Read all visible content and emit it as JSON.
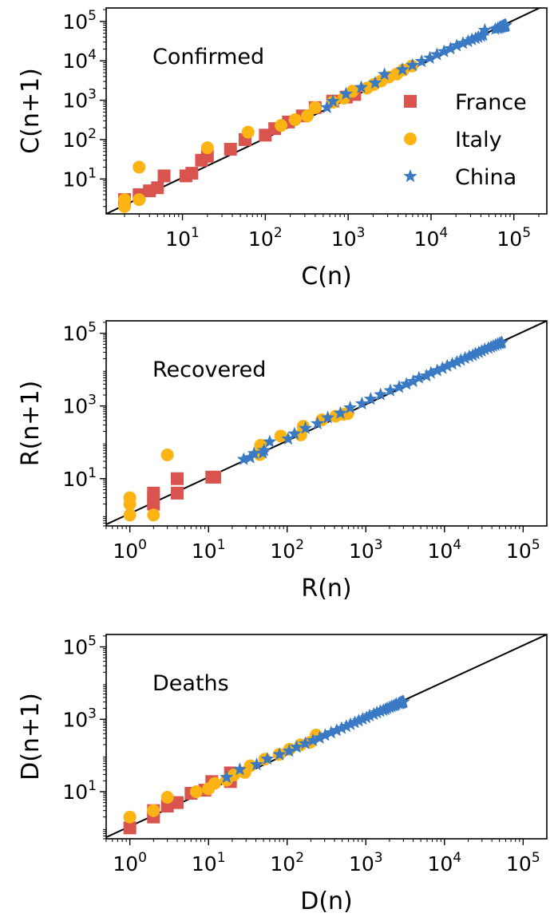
{
  "colors": {
    "France": "#d9534f",
    "Italy": "#fbb414",
    "China": "#3a79c3",
    "fit": "#000000"
  },
  "chart_data": [
    {
      "type": "scatter",
      "panel_label": "Confirmed",
      "xlabel": "C(n)",
      "ylabel": "C(n+1)",
      "x_scale": "log",
      "y_scale": "log",
      "xlim": [
        1.2,
        250000
      ],
      "ylim": [
        1.3,
        220000
      ],
      "x_ticks": [
        {
          "base": "10",
          "exp": "1",
          "value": 10
        },
        {
          "base": "10",
          "exp": "2",
          "value": 100
        },
        {
          "base": "10",
          "exp": "3",
          "value": 1000
        },
        {
          "base": "10",
          "exp": "4",
          "value": 10000
        },
        {
          "base": "10",
          "exp": "5",
          "value": 100000
        }
      ],
      "y_ticks": [
        {
          "base": "10",
          "exp": "1",
          "value": 10
        },
        {
          "base": "10",
          "exp": "2",
          "value": 100
        },
        {
          "base": "10",
          "exp": "3",
          "value": 1000
        },
        {
          "base": "10",
          "exp": "4",
          "value": 10000
        },
        {
          "base": "10",
          "exp": "5",
          "value": 100000
        }
      ],
      "grid": false,
      "fit_line": [
        [
          1.2,
          1.3
        ],
        [
          250000,
          270000
        ]
      ],
      "legend": {
        "placement": "right",
        "entries": [
          "France",
          "Italy",
          "China"
        ]
      },
      "series": [
        {
          "name": "France",
          "marker": "square",
          "points": [
            [
              2,
              3
            ],
            [
              3,
              4
            ],
            [
              4,
              5
            ],
            [
              5,
              6
            ],
            [
              6,
              12
            ],
            [
              11,
              12
            ],
            [
              13,
              14
            ],
            [
              17,
              30
            ],
            [
              20,
              38
            ],
            [
              38,
              57
            ],
            [
              57,
              100
            ],
            [
              100,
              130
            ],
            [
              130,
              190
            ],
            [
              190,
              280
            ],
            [
              280,
              400
            ],
            [
              400,
              650
            ],
            [
              650,
              950
            ],
            [
              950,
              1200
            ],
            [
              1200,
              1400
            ]
          ]
        },
        {
          "name": "Italy",
          "marker": "circle",
          "points": [
            [
              2,
              2
            ],
            [
              2,
              3
            ],
            [
              3,
              3
            ],
            [
              3,
              20
            ],
            [
              20,
              62
            ],
            [
              62,
              155
            ],
            [
              155,
              229
            ],
            [
              229,
              322
            ],
            [
              322,
              400
            ],
            [
              400,
              650
            ],
            [
              650,
              888
            ],
            [
              888,
              1128
            ],
            [
              1128,
              1694
            ],
            [
              1694,
              2036
            ],
            [
              2036,
              2502
            ],
            [
              2502,
              3089
            ],
            [
              3089,
              3858
            ],
            [
              3858,
              4636
            ],
            [
              4636,
              5883
            ],
            [
              5883,
              7375
            ]
          ]
        },
        {
          "name": "China",
          "marker": "star",
          "points": [
            [
              555,
              653
            ],
            [
              653,
              941
            ],
            [
              941,
              1438
            ],
            [
              1438,
              2118
            ],
            [
              2118,
              2744
            ],
            [
              2744,
              4515
            ],
            [
              4515,
              5974
            ],
            [
              5974,
              7711
            ],
            [
              7711,
              9692
            ],
            [
              9692,
              11791
            ],
            [
              11791,
              14380
            ],
            [
              14380,
              17205
            ],
            [
              17205,
              20438
            ],
            [
              20438,
              24324
            ],
            [
              24324,
              28018
            ],
            [
              28018,
              31161
            ],
            [
              31161,
              34546
            ],
            [
              34546,
              37198
            ],
            [
              37198,
              40171
            ],
            [
              40171,
              42638
            ],
            [
              42638,
              44653
            ],
            [
              44653,
              59804
            ],
            [
              59804,
              63851
            ],
            [
              63851,
              66492
            ],
            [
              66492,
              68500
            ],
            [
              68500,
              70548
            ],
            [
              70548,
              72436
            ],
            [
              72436,
              74185
            ],
            [
              74185,
              75002
            ],
            [
              75002,
              75891
            ],
            [
              75891,
              76288
            ],
            [
              76288,
              76936
            ],
            [
              76936,
              77150
            ],
            [
              77150,
              77658
            ],
            [
              77658,
              78064
            ],
            [
              78064,
              78497
            ],
            [
              78497,
              78824
            ],
            [
              78824,
              79251
            ],
            [
              79251,
              79824
            ],
            [
              79824,
              80026
            ]
          ]
        }
      ]
    },
    {
      "type": "scatter",
      "panel_label": "Recovered",
      "xlabel": "R(n)",
      "ylabel": "R(n+1)",
      "x_scale": "log",
      "y_scale": "log",
      "xlim": [
        0.5,
        200000
      ],
      "ylim": [
        0.5,
        220000
      ],
      "x_ticks": [
        {
          "base": "10",
          "exp": "0",
          "value": 1
        },
        {
          "base": "10",
          "exp": "1",
          "value": 10
        },
        {
          "base": "10",
          "exp": "2",
          "value": 100
        },
        {
          "base": "10",
          "exp": "3",
          "value": 1000
        },
        {
          "base": "10",
          "exp": "4",
          "value": 10000
        },
        {
          "base": "10",
          "exp": "5",
          "value": 100000
        }
      ],
      "y_ticks": [
        {
          "base": "10",
          "exp": "1",
          "value": 10
        },
        {
          "base": "10",
          "exp": "3",
          "value": 1000
        },
        {
          "base": "10",
          "exp": "5",
          "value": 100000
        }
      ],
      "grid": false,
      "fit_line": [
        [
          0.5,
          0.55
        ],
        [
          200000,
          220000
        ]
      ],
      "series": [
        {
          "name": "France",
          "marker": "square",
          "points": [
            [
              2,
              2
            ],
            [
              2,
              3
            ],
            [
              2,
              4
            ],
            [
              4,
              4
            ],
            [
              4,
              10
            ],
            [
              11,
              11
            ],
            [
              12,
              11
            ]
          ]
        },
        {
          "name": "Italy",
          "marker": "circle",
          "points": [
            [
              1,
              1
            ],
            [
              1,
              2
            ],
            [
              1,
              3
            ],
            [
              2,
              1
            ],
            [
              3,
              45
            ],
            [
              45,
              46
            ],
            [
              46,
              83
            ],
            [
              83,
              149
            ],
            [
              149,
              160
            ],
            [
              160,
              276
            ],
            [
              276,
              414
            ],
            [
              414,
              523
            ],
            [
              523,
              589
            ],
            [
              589,
              622
            ]
          ]
        },
        {
          "name": "China",
          "marker": "star",
          "points": [
            [
              28,
              34
            ],
            [
              34,
              38
            ],
            [
              38,
              49
            ],
            [
              49,
              51
            ],
            [
              51,
              60
            ],
            [
              60,
              103
            ],
            [
              103,
              124
            ],
            [
              124,
              171
            ],
            [
              171,
              243
            ],
            [
              243,
              328
            ],
            [
              328,
              475
            ],
            [
              475,
              632
            ],
            [
              632,
              892
            ],
            [
              892,
              1153
            ],
            [
              1153,
              1540
            ],
            [
              1540,
              2050
            ],
            [
              2050,
              2649
            ],
            [
              2649,
              3281
            ],
            [
              3281,
              3996
            ],
            [
              3996,
              4740
            ],
            [
              4740,
              5911
            ],
            [
              5911,
              6723
            ],
            [
              6723,
              8096
            ],
            [
              8096,
              9419
            ],
            [
              9419,
              10844
            ],
            [
              10844,
              12552
            ],
            [
              12552,
              14376
            ],
            [
              14376,
              16155
            ],
            [
              16155,
              18264
            ],
            [
              18264,
              20659
            ],
            [
              20659,
              22888
            ],
            [
              22888,
              24734
            ],
            [
              24734,
              27323
            ],
            [
              27323,
              29745
            ],
            [
              29745,
              32495
            ],
            [
              32495,
              36117
            ],
            [
              36117,
              39002
            ],
            [
              39002,
              41625
            ],
            [
              41625,
              44462
            ],
            [
              44462,
              47204
            ],
            [
              47204,
              49856
            ],
            [
              49856,
              52045
            ],
            [
              52045,
              53726
            ],
            [
              53726,
              55404
            ]
          ]
        }
      ]
    },
    {
      "type": "scatter",
      "panel_label": "Deaths",
      "xlabel": "D(n)",
      "ylabel": "D(n+1)",
      "x_scale": "log",
      "y_scale": "log",
      "xlim": [
        0.5,
        200000
      ],
      "ylim": [
        0.5,
        220000
      ],
      "x_ticks": [
        {
          "base": "10",
          "exp": "0",
          "value": 1
        },
        {
          "base": "10",
          "exp": "1",
          "value": 10
        },
        {
          "base": "10",
          "exp": "2",
          "value": 100
        },
        {
          "base": "10",
          "exp": "3",
          "value": 1000
        },
        {
          "base": "10",
          "exp": "4",
          "value": 10000
        },
        {
          "base": "10",
          "exp": "5",
          "value": 100000
        }
      ],
      "y_ticks": [
        {
          "base": "10",
          "exp": "1",
          "value": 10
        },
        {
          "base": "10",
          "exp": "3",
          "value": 1000
        },
        {
          "base": "10",
          "exp": "5",
          "value": 100000
        }
      ],
      "grid": false,
      "fit_line": [
        [
          0.5,
          0.55
        ],
        [
          200000,
          220000
        ]
      ],
      "series": [
        {
          "name": "France",
          "marker": "square",
          "points": [
            [
              1,
              1
            ],
            [
              2,
              2
            ],
            [
              2,
              3
            ],
            [
              3,
              4
            ],
            [
              4,
              5
            ],
            [
              6,
              9
            ],
            [
              9,
              11
            ],
            [
              11,
              19
            ],
            [
              19,
              19
            ],
            [
              19,
              33
            ]
          ]
        },
        {
          "name": "Italy",
          "marker": "circle",
          "points": [
            [
              1,
              2
            ],
            [
              2,
              3
            ],
            [
              3,
              7
            ],
            [
              7,
              10
            ],
            [
              10,
              12
            ],
            [
              12,
              17
            ],
            [
              17,
              21
            ],
            [
              21,
              29
            ],
            [
              29,
              34
            ],
            [
              34,
              52
            ],
            [
              52,
              79
            ],
            [
              79,
              107
            ],
            [
              107,
              148
            ],
            [
              148,
              197
            ],
            [
              197,
              233
            ],
            [
              233,
              366
            ]
          ]
        },
        {
          "name": "China",
          "marker": "star",
          "points": [
            [
              17,
              25
            ],
            [
              25,
              41
            ],
            [
              41,
              56
            ],
            [
              56,
              80
            ],
            [
              80,
              106
            ],
            [
              106,
              132
            ],
            [
              132,
              170
            ],
            [
              170,
              213
            ],
            [
              213,
              259
            ],
            [
              259,
              304
            ],
            [
              304,
              362
            ],
            [
              362,
              426
            ],
            [
              426,
              492
            ],
            [
              492,
              565
            ],
            [
              565,
              638
            ],
            [
              638,
              724
            ],
            [
              724,
              813
            ],
            [
              813,
              910
            ],
            [
              910,
              1018
            ],
            [
              1018,
              1115
            ],
            [
              1115,
              1261
            ],
            [
              1261,
              1383
            ],
            [
              1383,
              1526
            ],
            [
              1526,
              1669
            ],
            [
              1669,
              1775
            ],
            [
              1775,
              1873
            ],
            [
              1873,
              2009
            ],
            [
              2009,
              2126
            ],
            [
              2126,
              2247
            ],
            [
              2247,
              2360
            ],
            [
              2360,
              2441
            ],
            [
              2441,
              2618
            ],
            [
              2618,
              2699
            ],
            [
              2699,
              2763
            ],
            [
              2763,
              2800
            ],
            [
              2800,
              2835
            ],
            [
              2835,
              2870
            ],
            [
              2870,
              2912
            ],
            [
              2912,
              2943
            ],
            [
              2943,
              2981
            ],
            [
              2981,
              3013
            ],
            [
              3013,
              3042
            ]
          ]
        }
      ]
    }
  ]
}
